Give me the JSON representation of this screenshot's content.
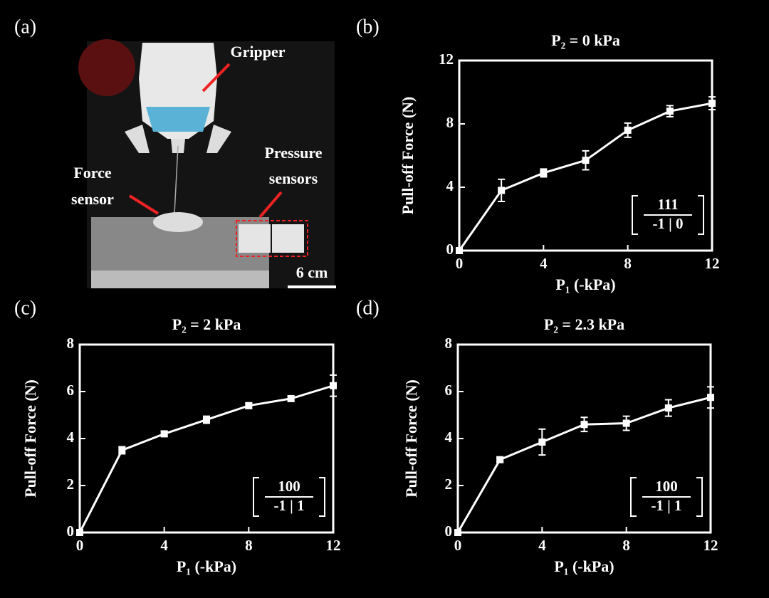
{
  "photo": {
    "label": "(a)",
    "gripper": "Gripper",
    "force_sensor": [
      "Force",
      "sensor"
    ],
    "pressure_sensors": [
      "Pressure",
      "sensors"
    ],
    "scale": "6 cm"
  },
  "chart_data": [
    {
      "type": "line",
      "label": "(b)",
      "title": "P₂ = 0 kPa",
      "x_label": "P₁ (-kPa)",
      "y_label": "Pull-off Force (N)",
      "x": [
        0,
        2,
        4,
        6,
        8,
        10,
        12
      ],
      "values": [
        0,
        3.8,
        4.9,
        5.7,
        7.6,
        8.8,
        9.3
      ],
      "errors": [
        0,
        0.7,
        0.25,
        0.6,
        0.45,
        0.35,
        0.4
      ],
      "xlim": [
        0,
        12
      ],
      "xticks": [
        0,
        4,
        8,
        12
      ],
      "ylim": [
        0,
        12
      ],
      "yticks": [
        0,
        4,
        8,
        12
      ],
      "color": "#ffffff",
      "annotation": [
        "111",
        "-1 | 0"
      ]
    },
    {
      "type": "line",
      "label": "(c)",
      "title": "P₂ = 2 kPa",
      "x_label": "P₁ (-kPa)",
      "y_label": "Pull-off Force (N)",
      "x": [
        0,
        2,
        4,
        6,
        8,
        10,
        12
      ],
      "values": [
        0,
        3.5,
        4.2,
        4.8,
        5.4,
        5.7,
        6.25
      ],
      "errors": [
        0,
        0.15,
        0.1,
        0.15,
        0.12,
        0.1,
        0.45
      ],
      "xlim": [
        0,
        12
      ],
      "xticks": [
        0,
        4,
        8,
        12
      ],
      "ylim": [
        0,
        8
      ],
      "yticks": [
        0,
        2,
        4,
        6,
        8
      ],
      "color": "#ffffff",
      "annotation": [
        "100",
        "-1 | 1"
      ]
    },
    {
      "type": "line",
      "label": "(d)",
      "title": "P₂ = 2.3 kPa",
      "x_label": "P₁ (-kPa)",
      "y_label": "Pull-off Force (N)",
      "x": [
        0,
        2,
        4,
        6,
        8,
        10,
        12
      ],
      "values": [
        0,
        3.1,
        3.85,
        4.6,
        4.65,
        5.3,
        5.75
      ],
      "errors": [
        0,
        0.1,
        0.55,
        0.3,
        0.3,
        0.35,
        0.45
      ],
      "xlim": [
        0,
        12
      ],
      "xticks": [
        0,
        4,
        8,
        12
      ],
      "ylim": [
        0,
        8
      ],
      "yticks": [
        0,
        2,
        4,
        6,
        8
      ],
      "color": "#ffffff",
      "annotation": [
        "100",
        "-1 | 1"
      ]
    }
  ]
}
